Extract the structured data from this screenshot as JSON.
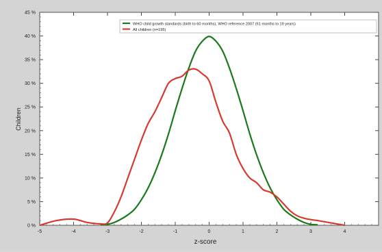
{
  "chart_data": {
    "type": "line",
    "xlabel": "z-score",
    "ylabel": "Children",
    "xlim": [
      -5,
      5
    ],
    "ylim": [
      0,
      45
    ],
    "x_ticks": [
      -5,
      -4,
      -3,
      -2,
      -1,
      0,
      1,
      2,
      3,
      4
    ],
    "x_tick_labels": [
      "-5",
      "-4",
      "-3",
      "-2",
      "-1",
      "0",
      "1",
      "2",
      "3",
      "4"
    ],
    "y_ticks": [
      0,
      5,
      10,
      15,
      20,
      25,
      30,
      35,
      40,
      45
    ],
    "y_tick_labels": [
      "0 %",
      "5 %",
      "10 %",
      "15 %",
      "20 %",
      "25 %",
      "30 %",
      "35 %",
      "40 %",
      "45 %"
    ],
    "grid": false,
    "legend_position": "top-right",
    "series": [
      {
        "name": "WHO child growth standards (birth to 60 months), WHO reference 2007 (61 months to 19 years)",
        "color": "#1a7a1a",
        "x": [
          -3.2,
          -3.0,
          -2.8,
          -2.6,
          -2.4,
          -2.2,
          -2.0,
          -1.8,
          -1.6,
          -1.4,
          -1.2,
          -1.0,
          -0.8,
          -0.6,
          -0.4,
          -0.2,
          0.0,
          0.2,
          0.4,
          0.6,
          0.8,
          1.0,
          1.2,
          1.4,
          1.6,
          1.8,
          2.0,
          2.2,
          2.4,
          2.6,
          2.8,
          3.0,
          3.2
        ],
        "y": [
          0.1,
          0.2,
          0.6,
          1.3,
          2.2,
          3.4,
          5.4,
          7.9,
          11.1,
          14.9,
          19.3,
          24.2,
          28.9,
          33.2,
          36.8,
          38.9,
          39.9,
          38.9,
          36.8,
          33.2,
          28.9,
          24.2,
          19.3,
          14.9,
          11.1,
          7.9,
          5.4,
          3.4,
          2.2,
          1.3,
          0.6,
          0.2,
          0.1
        ]
      },
      {
        "name": "All children (n=195)",
        "color": "#d63a2f",
        "x": [
          -5.0,
          -4.5,
          -4.0,
          -3.6,
          -3.2,
          -3.0,
          -2.8,
          -2.6,
          -2.4,
          -2.2,
          -2.0,
          -1.8,
          -1.6,
          -1.4,
          -1.2,
          -1.0,
          -0.8,
          -0.6,
          -0.4,
          -0.2,
          0.0,
          0.2,
          0.4,
          0.6,
          0.8,
          1.0,
          1.2,
          1.4,
          1.6,
          1.8,
          2.0,
          2.2,
          2.4,
          2.6,
          2.8,
          3.0,
          3.2,
          3.6,
          4.0
        ],
        "y": [
          0.0,
          1.0,
          1.3,
          0.6,
          0.3,
          0.5,
          2.8,
          6.0,
          10.0,
          14.0,
          18.0,
          21.5,
          24.0,
          27.0,
          30.0,
          31.0,
          31.5,
          32.8,
          33.0,
          32.0,
          30.5,
          26.0,
          22.0,
          19.5,
          15.0,
          12.0,
          10.0,
          9.0,
          7.5,
          7.0,
          6.0,
          4.5,
          3.0,
          2.0,
          1.5,
          1.2,
          1.0,
          0.5,
          0.0
        ]
      }
    ]
  }
}
